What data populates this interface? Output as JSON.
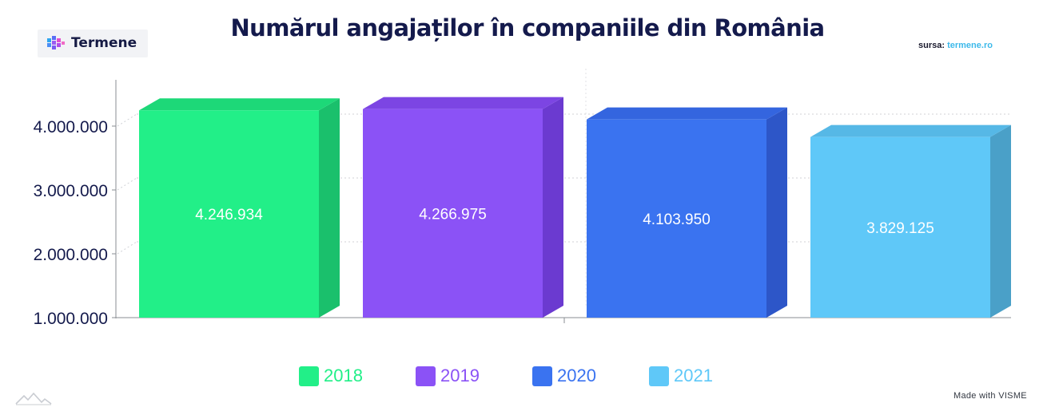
{
  "brand": {
    "name": "Termene"
  },
  "source": {
    "prefix": "sursa:",
    "link": "termene.ro"
  },
  "footer": {
    "made_with": "Made with VISME"
  },
  "chart_data": {
    "type": "bar",
    "title": "Numărul angajaților în companiile din România",
    "categories": [
      "2018",
      "2019",
      "2020",
      "2021"
    ],
    "values": [
      4246934,
      4266975,
      4103950,
      3829125
    ],
    "value_labels": [
      "4.246.934",
      "4.266.975",
      "4.103.950",
      "3.829.125"
    ],
    "y_ticks": [
      1000000,
      2000000,
      3000000,
      4000000
    ],
    "y_tick_labels": [
      "1.000.000",
      "2.000.000",
      "3.000.000",
      "4.000.000"
    ],
    "ylim": [
      1000000,
      4750000
    ],
    "grid": true,
    "legend_position": "bottom",
    "colors": {
      "front": [
        "#22ef88",
        "#8b52f6",
        "#3a73f0",
        "#5fc8f8"
      ],
      "side": [
        "#1ac06c",
        "#6b3ad0",
        "#2d56c8",
        "#4aa0c8"
      ],
      "top": [
        "#1dd878",
        "#7c45e3",
        "#3465df",
        "#56b8e6"
      ]
    }
  }
}
